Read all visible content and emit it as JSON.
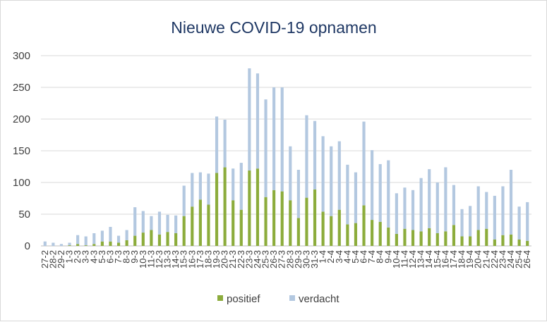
{
  "chart_data": {
    "type": "bar",
    "stacked": true,
    "title": "Nieuwe COVID-19 opnamen",
    "xlabel": "",
    "ylabel": "",
    "ylim": [
      0,
      300
    ],
    "yticks": [
      0,
      50,
      100,
      150,
      200,
      250,
      300
    ],
    "grid": true,
    "legend_position": "bottom",
    "categories": [
      "27-2",
      "28-2",
      "29-2",
      "1-3",
      "2-3",
      "3-3",
      "4-3",
      "5-3",
      "6-3",
      "7-3",
      "8-3",
      "9-3",
      "10-3",
      "11-3",
      "12-3",
      "13-3",
      "14-3",
      "15-3",
      "16-3",
      "17-3",
      "18-3",
      "19-3",
      "20-3",
      "21-3",
      "22-3",
      "23-3",
      "24-3",
      "25-3",
      "26-3",
      "27-3",
      "28-3",
      "29-3",
      "30-3",
      "31-3",
      "1-4",
      "2-4",
      "3-4",
      "4-4",
      "5-4",
      "6-4",
      "7-4",
      "8-4",
      "9-4",
      "10-4",
      "11-4",
      "12-4",
      "13-4",
      "14-4",
      "15-4",
      "16-4",
      "17-4",
      "18-4",
      "19-4",
      "20-4",
      "21-4",
      "22-4",
      "23-4",
      "24-4",
      "25-4",
      "26-4"
    ],
    "series": [
      {
        "name": "positief",
        "color": "#8cac3c",
        "values": [
          0,
          0,
          0,
          1,
          3,
          1,
          3,
          7,
          7,
          5,
          9,
          16,
          21,
          25,
          18,
          22,
          20,
          47,
          62,
          73,
          65,
          115,
          124,
          72,
          57,
          119,
          122,
          77,
          88,
          86,
          72,
          44,
          76,
          89,
          54,
          47,
          57,
          34,
          36,
          64,
          41,
          38,
          29,
          19,
          27,
          25,
          23,
          28,
          20,
          23,
          33,
          15,
          15,
          25,
          27,
          10,
          17,
          18,
          10,
          8
        ]
      },
      {
        "name": "verdacht",
        "color": "#b3c8e0",
        "values": [
          7,
          5,
          3,
          4,
          14,
          14,
          17,
          17,
          23,
          11,
          16,
          45,
          34,
          22,
          36,
          27,
          28,
          48,
          53,
          43,
          49,
          89,
          75,
          50,
          74,
          161,
          150,
          154,
          162,
          164,
          85,
          76,
          130,
          108,
          119,
          110,
          108,
          94,
          80,
          132,
          110,
          91,
          106,
          64,
          65,
          63,
          84,
          93,
          80,
          101,
          63,
          43,
          48,
          69,
          58,
          69,
          77,
          102,
          52,
          61
        ]
      }
    ]
  }
}
